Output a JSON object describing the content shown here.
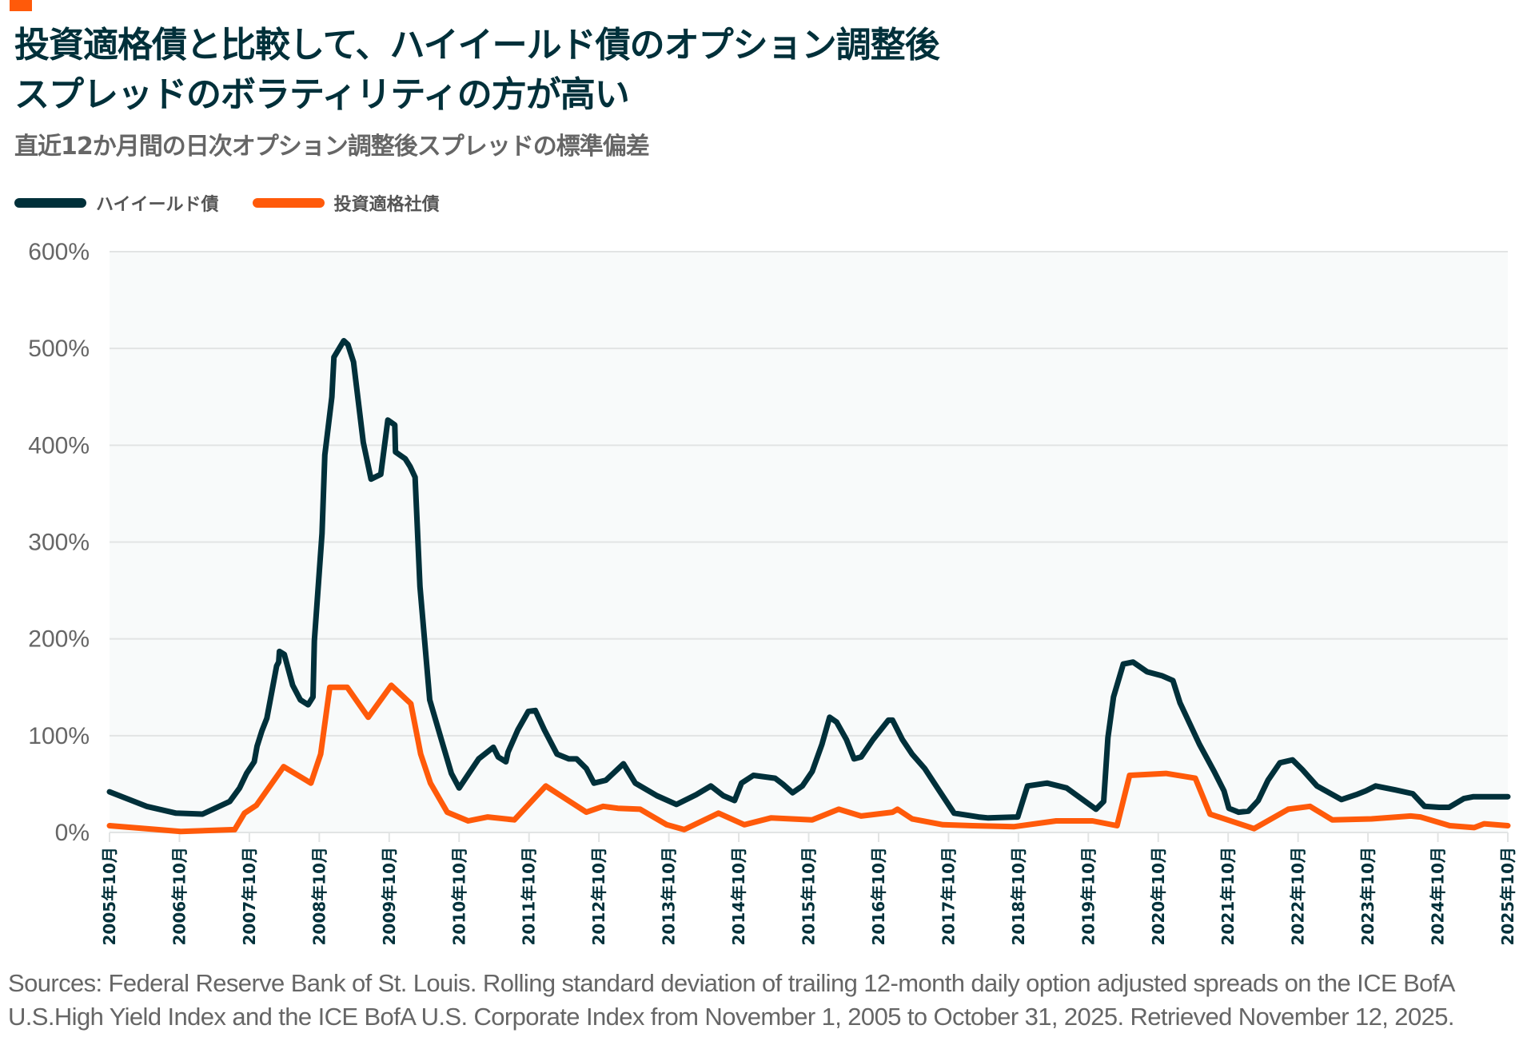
{
  "header": {
    "title_line1": "投資適格債と比較して、ハイイールド債のオプション調整後",
    "title_line2": "スプレッドのボラティリティの方が高い",
    "subtitle": "直近12か月間の日次オプション調整後スプレッドの標準偏差"
  },
  "colors": {
    "high_yield": "#00303a",
    "investment_grade": "#ff5a0a",
    "accent": "#ff5a0a",
    "plot_bg": "#f8fafa",
    "grid": "#e2e4e4"
  },
  "footer": {
    "line1": "Sources: Federal Reserve Bank of St. Louis. Rolling standard deviation of trailing 12-month daily option adjusted spreads on the ICE BofA",
    "line2": "U.S.High Yield Index and the ICE BofA U.S. Corporate Index from November 1, 2005 to October 31, 2025. Retrieved November 12, 2025."
  },
  "chart_data": {
    "type": "line",
    "title": "投資適格債と比較して、ハイイールド債のオプション調整後スプレッドのボラティリティの方が高い",
    "subtitle": "直近12か月間の日次オプション調整後スプレッドの標準偏差",
    "xlabel": "",
    "ylabel": "",
    "x_unit": "decimal year",
    "xlim": [
      2005.75,
      2025.75
    ],
    "ylim": [
      0,
      600
    ],
    "grid": true,
    "legend_position": "top-left",
    "y_ticks": [
      "0%",
      "100%",
      "200%",
      "300%",
      "400%",
      "500%",
      "600%"
    ],
    "y_tick_values": [
      0,
      100,
      200,
      300,
      400,
      500,
      600
    ],
    "x_ticks": [
      "2005年10月",
      "2006年10月",
      "2007年10月",
      "2008年10月",
      "2009年10月",
      "2010年10月",
      "2011年10月",
      "2012年10月",
      "2013年10月",
      "2014年10月",
      "2015年10月",
      "2016年10月",
      "2017年10月",
      "2018年10月",
      "2019年10月",
      "2020年10月",
      "2021年10月",
      "2022年10月",
      "2023年10月",
      "2024年10月",
      "2025年10月"
    ],
    "x_tick_values": [
      2005.75,
      2006.75,
      2007.75,
      2008.75,
      2009.75,
      2010.75,
      2011.75,
      2012.75,
      2013.75,
      2014.75,
      2015.75,
      2016.75,
      2017.75,
      2018.75,
      2019.75,
      2020.75,
      2021.75,
      2022.75,
      2023.75,
      2024.75,
      2025.75
    ],
    "series": [
      {
        "name": "ハイイールド債",
        "color": "#00303a",
        "points": [
          [
            2005.75,
            42
          ],
          [
            2006.28,
            27
          ],
          [
            2006.7,
            20
          ],
          [
            2007.08,
            19
          ],
          [
            2007.47,
            32
          ],
          [
            2007.61,
            46
          ],
          [
            2007.71,
            61
          ],
          [
            2007.82,
            73
          ],
          [
            2007.86,
            89
          ],
          [
            2007.93,
            105
          ],
          [
            2008.0,
            118
          ],
          [
            2008.07,
            145
          ],
          [
            2008.14,
            172
          ],
          [
            2008.17,
            176
          ],
          [
            2008.18,
            187
          ],
          [
            2008.25,
            184
          ],
          [
            2008.37,
            152
          ],
          [
            2008.48,
            137
          ],
          [
            2008.59,
            132
          ],
          [
            2008.66,
            140
          ],
          [
            2008.68,
            198
          ],
          [
            2008.79,
            309
          ],
          [
            2008.83,
            390
          ],
          [
            2008.93,
            450
          ],
          [
            2008.96,
            491
          ],
          [
            2009.1,
            508
          ],
          [
            2009.16,
            504
          ],
          [
            2009.24,
            486
          ],
          [
            2009.38,
            403
          ],
          [
            2009.49,
            365
          ],
          [
            2009.63,
            370
          ],
          [
            2009.73,
            426
          ],
          [
            2009.83,
            421
          ],
          [
            2009.84,
            393
          ],
          [
            2009.98,
            386
          ],
          [
            2010.05,
            378
          ],
          [
            2010.12,
            367
          ],
          [
            2010.19,
            254
          ],
          [
            2010.33,
            137
          ],
          [
            2010.5,
            95
          ],
          [
            2010.64,
            61
          ],
          [
            2010.75,
            46
          ],
          [
            2010.89,
            61
          ],
          [
            2011.03,
            76
          ],
          [
            2011.24,
            88
          ],
          [
            2011.31,
            78
          ],
          [
            2011.42,
            73
          ],
          [
            2011.45,
            83
          ],
          [
            2011.59,
            106
          ],
          [
            2011.74,
            125
          ],
          [
            2011.84,
            126
          ],
          [
            2011.97,
            106
          ],
          [
            2012.15,
            81
          ],
          [
            2012.32,
            76
          ],
          [
            2012.43,
            76
          ],
          [
            2012.57,
            66
          ],
          [
            2012.68,
            51
          ],
          [
            2012.85,
            54
          ],
          [
            2013.1,
            71
          ],
          [
            2013.27,
            51
          ],
          [
            2013.58,
            38
          ],
          [
            2013.86,
            29
          ],
          [
            2014.14,
            39
          ],
          [
            2014.35,
            48
          ],
          [
            2014.53,
            38
          ],
          [
            2014.69,
            33
          ],
          [
            2014.79,
            51
          ],
          [
            2014.96,
            59
          ],
          [
            2015.27,
            56
          ],
          [
            2015.38,
            50
          ],
          [
            2015.52,
            41
          ],
          [
            2015.66,
            48
          ],
          [
            2015.8,
            63
          ],
          [
            2015.94,
            91
          ],
          [
            2016.05,
            119
          ],
          [
            2016.15,
            114
          ],
          [
            2016.29,
            96
          ],
          [
            2016.4,
            76
          ],
          [
            2016.5,
            78
          ],
          [
            2016.67,
            96
          ],
          [
            2016.89,
            116
          ],
          [
            2016.95,
            116
          ],
          [
            2017.09,
            96
          ],
          [
            2017.23,
            81
          ],
          [
            2017.41,
            66
          ],
          [
            2017.62,
            43
          ],
          [
            2017.83,
            20
          ],
          [
            2018.18,
            16
          ],
          [
            2018.32,
            15
          ],
          [
            2018.74,
            16
          ],
          [
            2018.88,
            48
          ],
          [
            2019.16,
            51
          ],
          [
            2019.44,
            46
          ],
          [
            2019.86,
            24
          ],
          [
            2019.97,
            32
          ],
          [
            2020.03,
            98
          ],
          [
            2020.11,
            140
          ],
          [
            2020.25,
            174
          ],
          [
            2020.39,
            176
          ],
          [
            2020.59,
            166
          ],
          [
            2020.8,
            162
          ],
          [
            2020.96,
            157
          ],
          [
            2021.06,
            134
          ],
          [
            2021.34,
            91
          ],
          [
            2021.55,
            63
          ],
          [
            2021.69,
            43
          ],
          [
            2021.76,
            25
          ],
          [
            2021.9,
            21
          ],
          [
            2022.04,
            22
          ],
          [
            2022.18,
            33
          ],
          [
            2022.32,
            54
          ],
          [
            2022.49,
            72
          ],
          [
            2022.67,
            75
          ],
          [
            2022.81,
            65
          ],
          [
            2023.02,
            48
          ],
          [
            2023.37,
            34
          ],
          [
            2023.58,
            39
          ],
          [
            2023.72,
            43
          ],
          [
            2023.86,
            48
          ],
          [
            2024.14,
            44
          ],
          [
            2024.39,
            40
          ],
          [
            2024.56,
            27
          ],
          [
            2024.77,
            26
          ],
          [
            2024.91,
            26
          ],
          [
            2025.12,
            35
          ],
          [
            2025.26,
            37
          ],
          [
            2025.75,
            37
          ]
        ]
      },
      {
        "name": "投資適格社債",
        "color": "#ff5a0a",
        "points": [
          [
            2005.75,
            7
          ],
          [
            2006.28,
            4
          ],
          [
            2006.77,
            1
          ],
          [
            2007.54,
            3
          ],
          [
            2007.68,
            20
          ],
          [
            2007.85,
            28
          ],
          [
            2008.24,
            68
          ],
          [
            2008.63,
            51
          ],
          [
            2008.77,
            81
          ],
          [
            2008.9,
            150
          ],
          [
            2009.15,
            150
          ],
          [
            2009.45,
            119
          ],
          [
            2009.78,
            152
          ],
          [
            2010.06,
            133
          ],
          [
            2010.2,
            81
          ],
          [
            2010.34,
            51
          ],
          [
            2010.58,
            21
          ],
          [
            2010.88,
            12
          ],
          [
            2011.16,
            16
          ],
          [
            2011.54,
            13
          ],
          [
            2011.99,
            48
          ],
          [
            2012.57,
            21
          ],
          [
            2012.81,
            27
          ],
          [
            2013.02,
            25
          ],
          [
            2013.34,
            24
          ],
          [
            2013.72,
            8
          ],
          [
            2013.97,
            3
          ],
          [
            2014.46,
            20
          ],
          [
            2014.83,
            8
          ],
          [
            2015.21,
            15
          ],
          [
            2015.8,
            13
          ],
          [
            2016.18,
            24
          ],
          [
            2016.5,
            17
          ],
          [
            2016.95,
            21
          ],
          [
            2017.02,
            24
          ],
          [
            2017.23,
            14
          ],
          [
            2017.67,
            8
          ],
          [
            2018.09,
            7
          ],
          [
            2018.69,
            6
          ],
          [
            2019.29,
            12
          ],
          [
            2019.81,
            12
          ],
          [
            2020.16,
            7
          ],
          [
            2020.34,
            59
          ],
          [
            2020.86,
            61
          ],
          [
            2021.28,
            56
          ],
          [
            2021.49,
            19
          ],
          [
            2022.12,
            4
          ],
          [
            2022.61,
            24
          ],
          [
            2022.92,
            27
          ],
          [
            2023.24,
            13
          ],
          [
            2023.8,
            14
          ],
          [
            2024.36,
            17
          ],
          [
            2024.5,
            16
          ],
          [
            2024.92,
            7
          ],
          [
            2025.27,
            5
          ],
          [
            2025.41,
            9
          ],
          [
            2025.75,
            7
          ]
        ]
      }
    ]
  }
}
